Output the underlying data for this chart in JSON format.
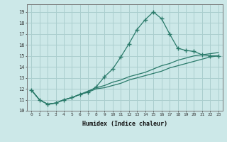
{
  "xlabel": "Humidex (Indice chaleur)",
  "ylabel": "",
  "bg_color": "#cce8e8",
  "grid_color": "#aacece",
  "line_color": "#2a7a6a",
  "xlim": [
    -0.5,
    23.5
  ],
  "ylim": [
    10,
    19.7
  ],
  "yticks": [
    10,
    11,
    12,
    13,
    14,
    15,
    16,
    17,
    18,
    19
  ],
  "xticks": [
    0,
    1,
    2,
    3,
    4,
    5,
    6,
    7,
    8,
    9,
    10,
    11,
    12,
    13,
    14,
    15,
    16,
    17,
    18,
    19,
    20,
    21,
    22,
    23
  ],
  "series1_x": [
    0,
    1,
    2,
    3,
    4,
    5,
    6,
    7,
    8,
    9,
    10,
    11,
    12,
    13,
    14,
    15,
    16,
    17,
    18,
    19,
    20,
    21,
    22,
    23
  ],
  "series1_y": [
    11.9,
    11.0,
    10.6,
    10.7,
    11.0,
    11.2,
    11.5,
    11.7,
    12.2,
    13.1,
    13.8,
    14.9,
    16.1,
    17.4,
    18.3,
    19.0,
    18.4,
    17.0,
    15.7,
    15.5,
    15.4,
    15.1,
    15.0,
    15.0
  ],
  "series2_x": [
    0,
    1,
    2,
    3,
    4,
    5,
    6,
    7,
    8,
    9,
    10,
    11,
    12,
    13,
    14,
    15,
    16,
    17,
    18,
    19,
    20,
    21,
    22,
    23
  ],
  "series2_y": [
    11.9,
    11.0,
    10.6,
    10.7,
    11.0,
    11.2,
    11.5,
    11.8,
    12.1,
    12.3,
    12.6,
    12.8,
    13.1,
    13.3,
    13.5,
    13.8,
    14.1,
    14.3,
    14.6,
    14.8,
    15.0,
    15.1,
    15.2,
    15.3
  ],
  "series3_x": [
    0,
    1,
    2,
    3,
    4,
    5,
    6,
    7,
    8,
    9,
    10,
    11,
    12,
    13,
    14,
    15,
    16,
    17,
    18,
    19,
    20,
    21,
    22,
    23
  ],
  "series3_y": [
    11.9,
    11.0,
    10.6,
    10.7,
    11.0,
    11.2,
    11.5,
    11.7,
    12.0,
    12.1,
    12.3,
    12.5,
    12.8,
    13.0,
    13.2,
    13.4,
    13.6,
    13.9,
    14.1,
    14.3,
    14.5,
    14.7,
    14.9,
    15.0
  ]
}
